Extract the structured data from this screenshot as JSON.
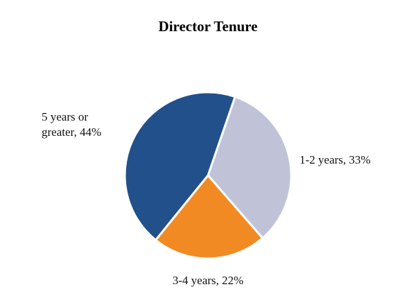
{
  "chart_data": {
    "type": "pie",
    "title": "Director Tenure",
    "values": [
      33,
      22,
      44
    ],
    "value_labels": [
      "1-2 years, 33%",
      "3-4 years, 22%",
      "5 years or greater, 44%"
    ],
    "colors": [
      "#c0c3d8",
      "#f28a24",
      "#22508a"
    ]
  }
}
